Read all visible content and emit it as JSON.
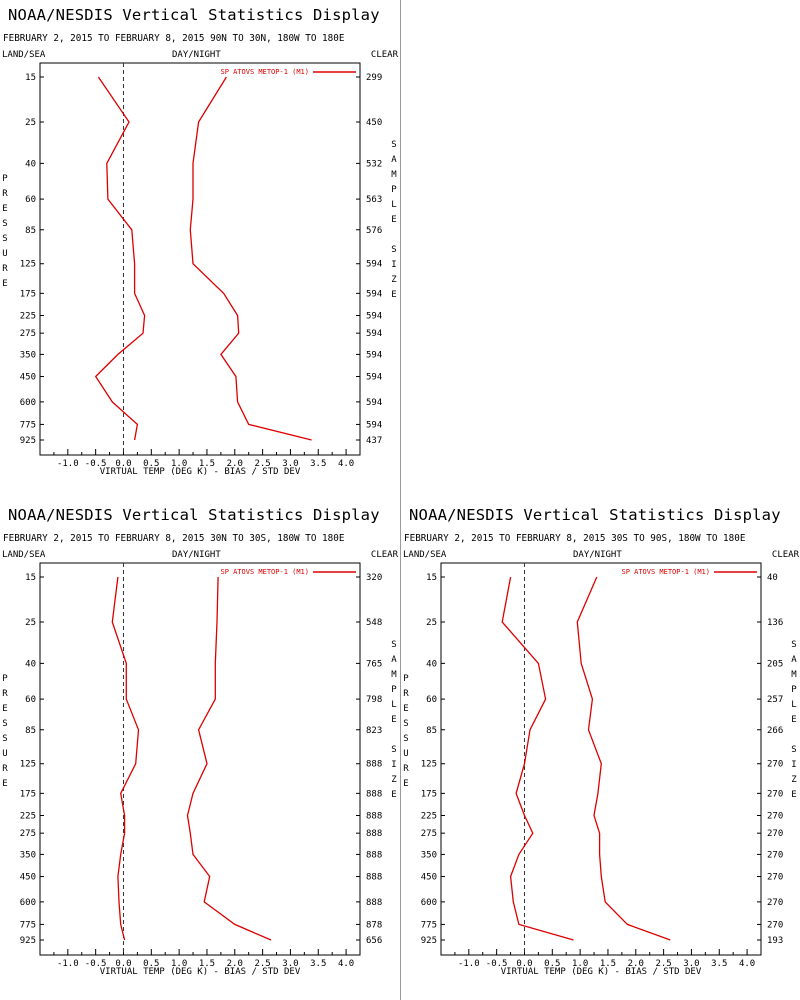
{
  "panels": [
    {
      "title": "NOAA/NESDIS Vertical Statistics Display",
      "date_line": "FEBRUARY 2, 2015 TO FEBRUARY 8, 2015  90N TO 30N, 180W TO 180E",
      "land_sea": "LAND/SEA",
      "day_night": "DAY/NIGHT",
      "clear": "CLEAR",
      "pressure_word": "PRESSURE",
      "sample_size_word": "SAMPLE SIZE",
      "x_axis_title": "VIRTUAL TEMP (DEG K) - BIAS / STD DEV",
      "legend": "SP ATOVS METOP-1 (M1)",
      "sample_sizes": [
        "299",
        "450",
        "532",
        "563",
        "576",
        "594",
        "594",
        "594",
        "594",
        "594",
        "594",
        "594",
        "594",
        "437"
      ]
    },
    {
      "title": "NOAA/NESDIS Vertical Statistics Display",
      "date_line": "FEBRUARY 2, 2015 TO FEBRUARY 8, 2015  30N TO 30S, 180W TO 180E",
      "land_sea": "LAND/SEA",
      "day_night": "DAY/NIGHT",
      "clear": "CLEAR",
      "pressure_word": "PRESSURE",
      "sample_size_word": "SAMPLE SIZE",
      "x_axis_title": "VIRTUAL TEMP (DEG K) - BIAS / STD DEV",
      "legend": "SP ATOVS METOP-1 (M1)",
      "sample_sizes": [
        "320",
        "548",
        "765",
        "798",
        "823",
        "888",
        "888",
        "888",
        "888",
        "888",
        "888",
        "888",
        "878",
        "656"
      ]
    },
    {
      "title": "NOAA/NESDIS Vertical Statistics Display",
      "date_line": "FEBRUARY 2, 2015 TO FEBRUARY 8, 2015  30S TO 90S, 180W TO 180E",
      "land_sea": "LAND/SEA",
      "day_night": "DAY/NIGHT",
      "clear": "CLEAR",
      "pressure_word": "PRESSURE",
      "sample_size_word": "SAMPLE SIZE",
      "x_axis_title": "VIRTUAL TEMP (DEG K) - BIAS / STD DEV",
      "legend": "SP ATOVS METOP-1 (M1)",
      "sample_sizes": [
        "40",
        "136",
        "205",
        "257",
        "266",
        "270",
        "270",
        "270",
        "270",
        "270",
        "270",
        "270",
        "270",
        "193"
      ]
    }
  ],
  "chart_data": [
    {
      "type": "line",
      "region": "90N TO 30N",
      "pressure_levels": [
        15,
        25,
        40,
        60,
        85,
        125,
        175,
        225,
        275,
        350,
        450,
        600,
        775,
        925
      ],
      "pressure_labels": [
        "15",
        "25",
        "40",
        "60",
        "85",
        "125",
        "175",
        "225",
        "275",
        "350",
        "450",
        "600",
        "775",
        "925"
      ],
      "x_ticks": [
        "-1.0",
        "-0.5",
        "0.0",
        "0.5",
        "1.0",
        "1.5",
        "2.0",
        "2.5",
        "3.0",
        "3.5",
        "4.0"
      ],
      "xlim": [
        -1.5,
        4.25
      ],
      "color": "#dd0000",
      "series": [
        {
          "values": [
            -0.45,
            0.1,
            -0.3,
            -0.28,
            0.15,
            0.2,
            0.2,
            0.38,
            0.35,
            -0.1,
            -0.5,
            -0.2,
            0.25,
            0.2
          ]
        },
        {
          "values": [
            1.85,
            1.35,
            1.25,
            1.25,
            1.2,
            1.25,
            1.8,
            2.05,
            2.07,
            1.75,
            2.02,
            2.05,
            2.25,
            3.38
          ]
        }
      ]
    },
    {
      "type": "line",
      "region": "30N TO 30S",
      "pressure_levels": [
        15,
        25,
        40,
        60,
        85,
        125,
        175,
        225,
        275,
        350,
        450,
        600,
        775,
        925
      ],
      "pressure_labels": [
        "15",
        "25",
        "40",
        "60",
        "85",
        "125",
        "175",
        "225",
        "275",
        "350",
        "450",
        "600",
        "775",
        "925"
      ],
      "x_ticks": [
        "-1.0",
        "-0.5",
        "0.0",
        "0.5",
        "1.0",
        "1.5",
        "2.0",
        "2.5",
        "3.0",
        "3.5",
        "4.0"
      ],
      "xlim": [
        -1.5,
        4.25
      ],
      "color": "#dd0000",
      "series": [
        {
          "values": [
            -0.1,
            -0.2,
            0.05,
            0.05,
            0.27,
            0.22,
            -0.05,
            0.02,
            0.02,
            -0.05,
            -0.1,
            -0.08,
            -0.05,
            0.02
          ]
        },
        {
          "values": [
            1.7,
            1.68,
            1.65,
            1.65,
            1.35,
            1.5,
            1.25,
            1.15,
            1.2,
            1.25,
            1.55,
            1.45,
            2.0,
            2.65
          ]
        }
      ]
    },
    {
      "type": "line",
      "region": "30S TO 90S",
      "pressure_levels": [
        15,
        25,
        40,
        60,
        85,
        125,
        175,
        225,
        275,
        350,
        450,
        600,
        775,
        925
      ],
      "pressure_labels": [
        "15",
        "25",
        "40",
        "60",
        "85",
        "125",
        "175",
        "225",
        "275",
        "350",
        "450",
        "600",
        "775",
        "925"
      ],
      "x_ticks": [
        "-1.0",
        "-0.5",
        "0.0",
        "0.5",
        "1.0",
        "1.5",
        "2.0",
        "2.5",
        "3.0",
        "3.5",
        "4.0"
      ],
      "xlim": [
        -1.5,
        4.25
      ],
      "color": "#dd0000",
      "series": [
        {
          "values": [
            -0.25,
            -0.4,
            0.25,
            0.38,
            0.1,
            0.0,
            -0.15,
            0.0,
            0.15,
            -0.1,
            -0.25,
            -0.2,
            -0.1,
            0.88
          ]
        },
        {
          "values": [
            1.3,
            0.95,
            1.02,
            1.22,
            1.15,
            1.38,
            1.32,
            1.25,
            1.35,
            1.35,
            1.38,
            1.45,
            1.85,
            2.62
          ]
        }
      ]
    }
  ]
}
